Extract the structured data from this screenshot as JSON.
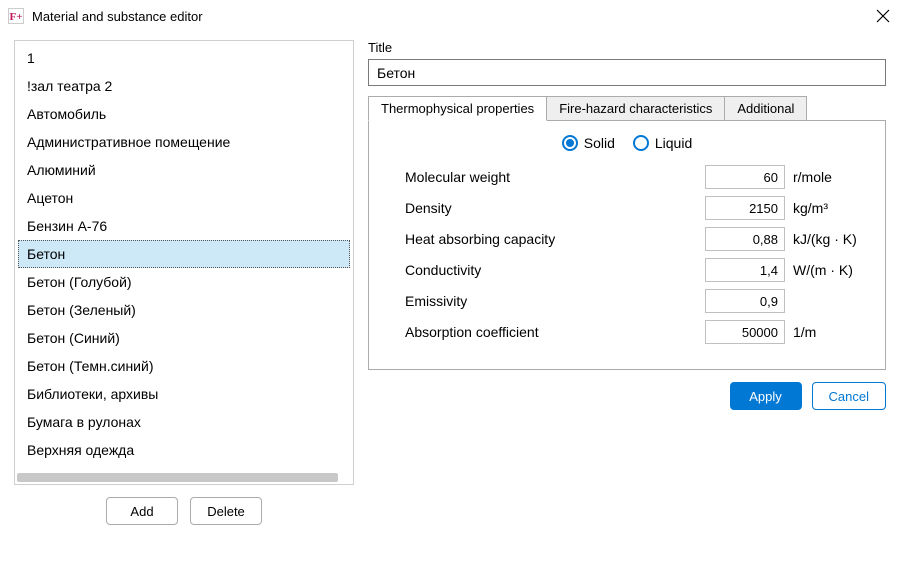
{
  "window": {
    "title": "Material and substance editor",
    "icon_text": "F+",
    "icon_color": "#c2185b"
  },
  "materials": [
    "1",
    "!зал театра 2",
    "Автомобиль",
    "Административное помещение",
    "Алюминий",
    "Ацетон",
    "Бензин А-76",
    "Бетон",
    "Бетон (Голубой)",
    "Бетон (Зеленый)",
    "Бетон (Синий)",
    "Бетон (Темн.синий)",
    "Библиотеки, архивы",
    "Бумага в рулонах",
    "Верхняя одежда"
  ],
  "selected_index": 7,
  "list_actions": {
    "add": "Add",
    "delete": "Delete"
  },
  "form": {
    "title_label": "Title",
    "title_value": "Бетон",
    "tabs": {
      "thermo": "Thermophysical properties",
      "fire": "Fire-hazard characteristics",
      "additional": "Additional"
    },
    "active_tab": 0,
    "phase": {
      "solid": "Solid",
      "liquid": "Liquid",
      "selected": "solid"
    },
    "props": [
      {
        "label": "Molecular weight",
        "value": "60",
        "unit": "r/mole"
      },
      {
        "label": "Density",
        "value": "2150",
        "unit": "kg/m³"
      },
      {
        "label": "Heat absorbing capacity",
        "value": "0,88",
        "unit": "kJ/(kg · K)"
      },
      {
        "label": "Conductivity",
        "value": "1,4",
        "unit": "W/(m · K)"
      },
      {
        "label": "Emissivity",
        "value": "0,9",
        "unit": ""
      },
      {
        "label": "Absorption coefficient",
        "value": "50000",
        "unit": "1/m"
      }
    ]
  },
  "footer": {
    "apply": "Apply",
    "cancel": "Cancel"
  },
  "colors": {
    "accent": "#0078d4",
    "selection": "#cde8f7",
    "border": "#ababab"
  }
}
